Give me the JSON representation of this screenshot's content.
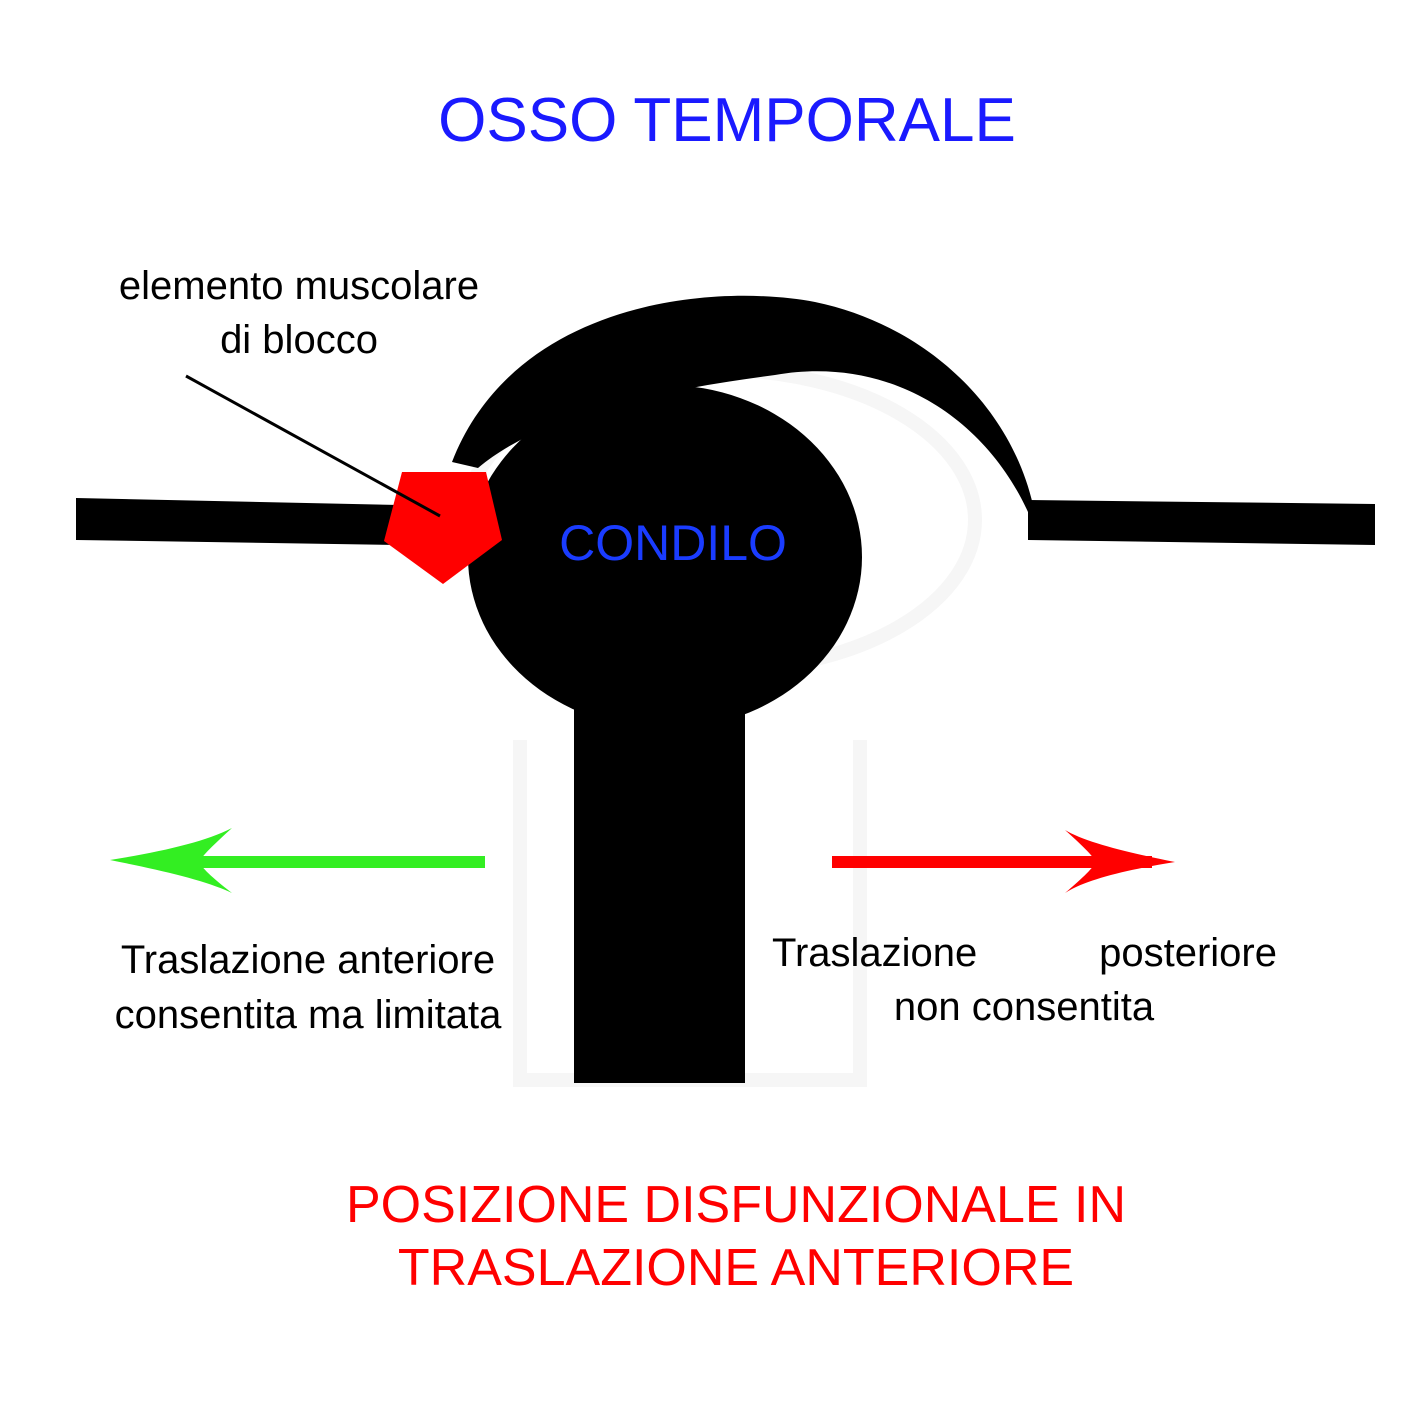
{
  "title": "OSSO TEMPORALE",
  "muscle_label": {
    "line1": "elemento muscolare",
    "line2": "di blocco"
  },
  "condyle_label": "CONDILO",
  "anterior_label": {
    "line1": "Traslazione anteriore",
    "line2": "consentita ma limitata"
  },
  "posterior_label": {
    "line1_word1": "Traslazione",
    "line1_word2": "posteriore",
    "line2": "non consentita"
  },
  "caption": {
    "line1": "POSIZIONE DISFUNZIONALE IN",
    "line2": "TRASLAZIONE ANTERIORE"
  },
  "colors": {
    "title": "#1a1aff",
    "condyle_label": "#1a3cff",
    "caption": "#ff0000",
    "bone": "#000000",
    "muscle_block": "#ff0000",
    "anterior_arrow": "#33ee22",
    "posterior_arrow": "#ff0000"
  }
}
